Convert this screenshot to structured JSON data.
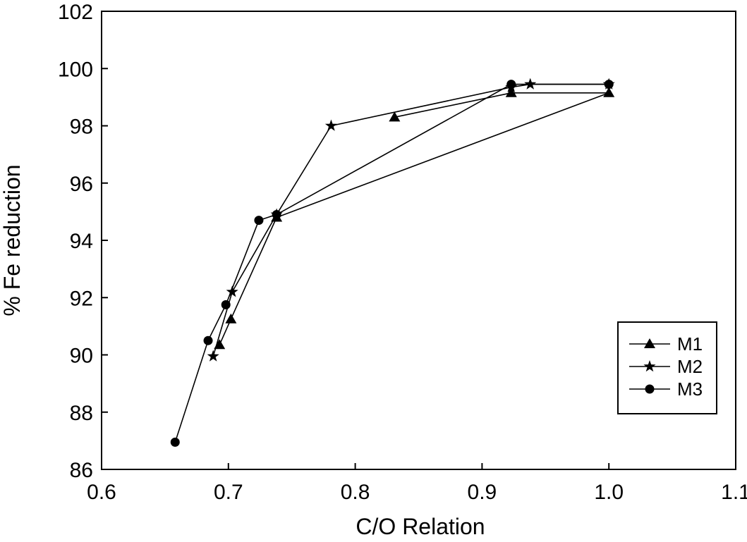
{
  "chart_data": {
    "type": "line",
    "title": "",
    "xlabel": "C/O Relation",
    "ylabel": "% Fe reduction",
    "xlim": [
      0.6,
      1.1
    ],
    "ylim": [
      86,
      102
    ],
    "xticks": [
      0.6,
      0.7,
      0.8,
      0.9,
      1.0,
      1.1
    ],
    "xtick_labels": [
      "0.6",
      "0.7",
      "0.8",
      "0.9",
      "1.0",
      "1.1"
    ],
    "yticks": [
      86,
      88,
      90,
      92,
      94,
      96,
      98,
      100,
      102
    ],
    "ytick_labels": [
      "86",
      "88",
      "90",
      "92",
      "94",
      "96",
      "98",
      "100",
      "102"
    ],
    "grid": false,
    "legend_position": "bottom-right",
    "series": [
      {
        "name": "M1",
        "marker": "triangle",
        "color": "#000000",
        "points": [
          {
            "x": 0.693,
            "y": 90.35
          },
          {
            "x": 0.702,
            "y": 91.25
          },
          {
            "x": 0.738,
            "y": 94.8
          },
          {
            "x": 1.0,
            "y": 99.15
          },
          {
            "x": 0.923,
            "y": 99.15
          },
          {
            "x": 0.831,
            "y": 98.3
          }
        ]
      },
      {
        "name": "M2",
        "marker": "star",
        "color": "#000000",
        "points": [
          {
            "x": 0.688,
            "y": 89.95
          },
          {
            "x": 0.703,
            "y": 92.2
          },
          {
            "x": 0.738,
            "y": 94.9
          },
          {
            "x": 0.781,
            "y": 98.0
          },
          {
            "x": 0.923,
            "y": 99.35
          },
          {
            "x": 0.938,
            "y": 99.45
          },
          {
            "x": 1.0,
            "y": 99.45
          }
        ]
      },
      {
        "name": "M3",
        "marker": "circle",
        "color": "#000000",
        "points": [
          {
            "x": 0.658,
            "y": 86.95
          },
          {
            "x": 0.684,
            "y": 90.5
          },
          {
            "x": 0.698,
            "y": 91.75
          },
          {
            "x": 0.724,
            "y": 94.7
          },
          {
            "x": 0.738,
            "y": 94.9
          },
          {
            "x": 0.923,
            "y": 99.45
          },
          {
            "x": 1.0,
            "y": 99.45
          }
        ]
      }
    ]
  }
}
